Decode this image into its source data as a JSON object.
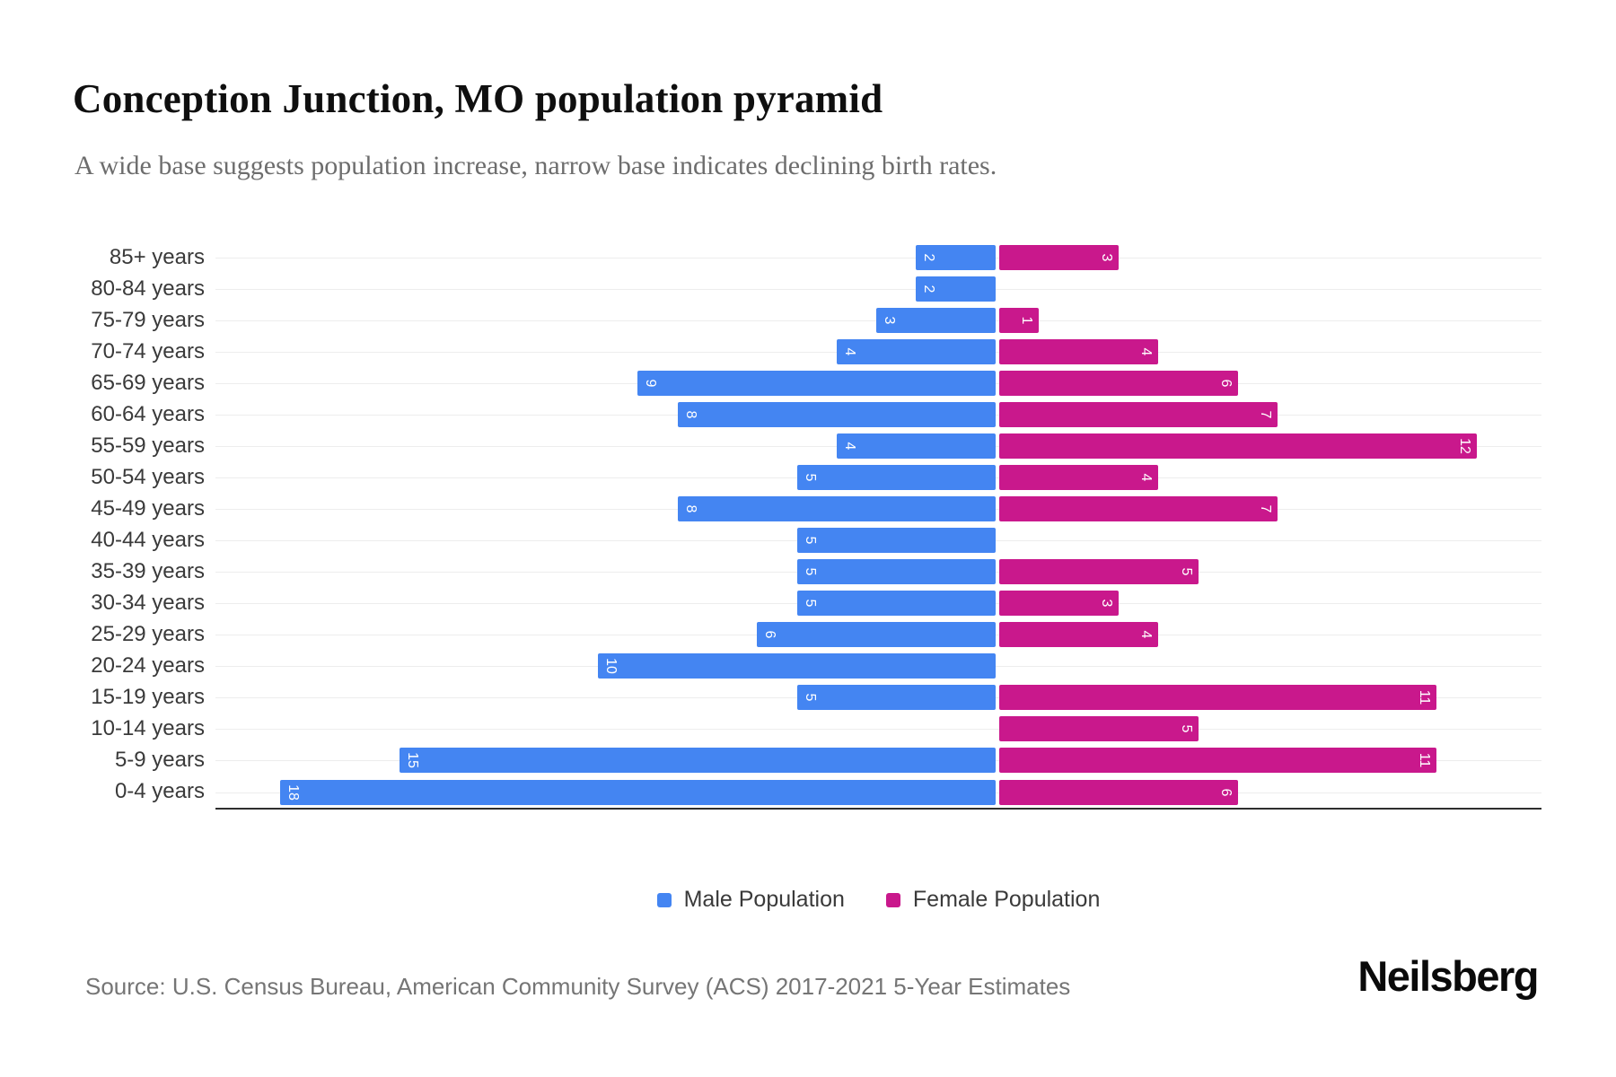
{
  "header": {
    "title": "Conception Junction, MO population pyramid",
    "subtitle": "A wide base suggests population increase, narrow base indicates declining birth rates."
  },
  "chart_data": {
    "type": "bar",
    "variant": "population-pyramid",
    "categories": [
      "85+ years",
      "80-84 years",
      "75-79 years",
      "70-74 years",
      "65-69 years",
      "60-64 years",
      "55-59 years",
      "50-54 years",
      "45-49 years",
      "40-44 years",
      "35-39 years",
      "30-34 years",
      "25-29 years",
      "20-24 years",
      "15-19 years",
      "10-14 years",
      "5-9 years",
      "0-4 years"
    ],
    "series": [
      {
        "name": "Male Population",
        "side": "left",
        "color": "#4485F2",
        "values": [
          2,
          2,
          3,
          4,
          9,
          8,
          4,
          5,
          8,
          5,
          5,
          5,
          6,
          10,
          5,
          0,
          15,
          18
        ]
      },
      {
        "name": "Female Population",
        "side": "right",
        "color": "#C9188C",
        "values": [
          3,
          0,
          1,
          4,
          6,
          7,
          12,
          4,
          7,
          0,
          5,
          3,
          4,
          0,
          11,
          5,
          11,
          6
        ]
      }
    ],
    "value_labels": "inside-bar-ends, rotated 90deg, white",
    "xlim": [
      -19.7,
      13.7
    ],
    "grid": "horizontal light gridline per category row",
    "axis_line_color": "#2e2e2e",
    "gridline_color": "#ededed",
    "legend_position": "bottom-center"
  },
  "legend": {
    "items": [
      {
        "label": "Male Population"
      },
      {
        "label": "Female Population"
      }
    ]
  },
  "footer": {
    "source": "Source: U.S. Census Bureau, American Community Survey (ACS) 2017-2021 5-Year Estimates",
    "brand": "Neilsberg"
  }
}
